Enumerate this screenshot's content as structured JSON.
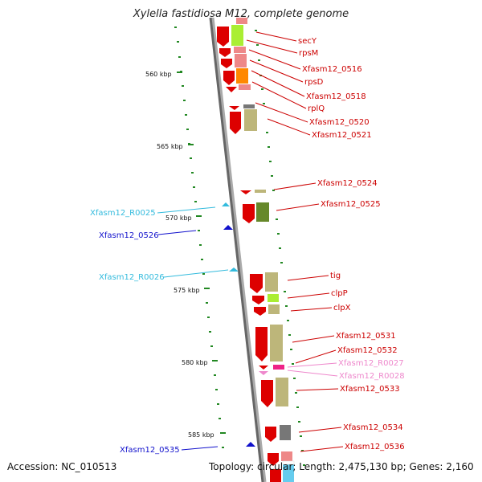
{
  "title": "Xylella fastidiosa M12, complete genome",
  "accession": "Accession: NC_010513",
  "topology": "Topology: circular; Length: 2,475,130 bp; Genes: 2,160",
  "colors": {
    "gene_label": "#cc0000",
    "rna_label": "#33bbdd",
    "misc_label": "#1010cc",
    "pseudo_label": "#ee88cc",
    "tick_mark": "#228822"
  },
  "ticks": [
    {
      "label": "560 kbp"
    },
    {
      "label": "565 kbp"
    },
    {
      "label": "570 kbp"
    },
    {
      "label": "575 kbp"
    },
    {
      "label": "580 kbp"
    },
    {
      "label": "585 kbp"
    }
  ],
  "right_labels": [
    {
      "text": "secY"
    },
    {
      "text": "rpsM"
    },
    {
      "text": "Xfasm12_0516"
    },
    {
      "text": "rpsD"
    },
    {
      "text": "Xfasm12_0518"
    },
    {
      "text": "rplQ"
    },
    {
      "text": "Xfasm12_0520"
    },
    {
      "text": "Xfasm12_0521"
    },
    {
      "text": "Xfasm12_0524"
    },
    {
      "text": "Xfasm12_0525"
    },
    {
      "text": "tig"
    },
    {
      "text": "clpP"
    },
    {
      "text": "clpX"
    },
    {
      "text": "Xfasm12_0531"
    },
    {
      "text": "Xfasm12_0532"
    },
    {
      "text": "Xfasm12_R0027"
    },
    {
      "text": "Xfasm12_R0028"
    },
    {
      "text": "Xfasm12_0533"
    },
    {
      "text": "Xfasm12_0534"
    },
    {
      "text": "Xfasm12_0536"
    }
  ],
  "left_labels": [
    {
      "text": "Xfasm12_R0025"
    },
    {
      "text": "Xfasm12_0526"
    },
    {
      "text": "Xfasm12_R0026"
    },
    {
      "text": "Xfasm12_0535"
    }
  ]
}
